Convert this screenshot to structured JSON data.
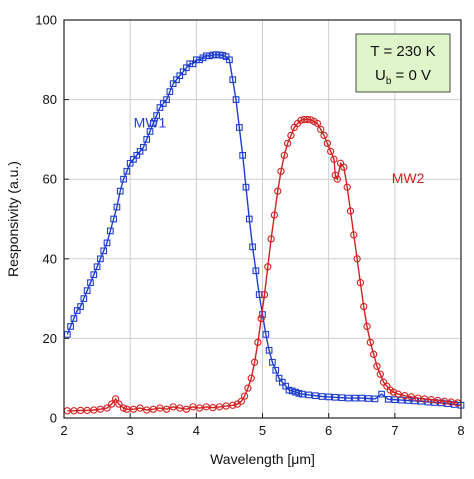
{
  "chart_data": {
    "type": "scatter",
    "xlabel": "Wavelength [μm]",
    "ylabel": "Responsivity (a.u.)",
    "xlim": [
      2,
      8
    ],
    "ylim": [
      0,
      100
    ],
    "x_ticks": [
      "2",
      "3",
      "4",
      "5",
      "6",
      "7",
      "8"
    ],
    "y_ticks": [
      "0",
      "20",
      "40",
      "60",
      "80",
      "100"
    ],
    "grid": true,
    "legend": "none",
    "annotation": {
      "line1": "T = 230 K",
      "line2_main": "U",
      "line2_sub": "b",
      "line2_rest": " = 0 V",
      "background": "#dff5c9"
    },
    "series": [
      {
        "name": "MW1",
        "color": "#1f3ecf",
        "marker": "square",
        "x": [
          2.05,
          2.1,
          2.15,
          2.2,
          2.25,
          2.3,
          2.35,
          2.4,
          2.45,
          2.5,
          2.55,
          2.6,
          2.65,
          2.7,
          2.75,
          2.8,
          2.85,
          2.9,
          2.95,
          3.0,
          3.05,
          3.1,
          3.15,
          3.2,
          3.25,
          3.3,
          3.35,
          3.4,
          3.45,
          3.5,
          3.55,
          3.6,
          3.65,
          3.7,
          3.75,
          3.8,
          3.85,
          3.9,
          3.95,
          4.0,
          4.05,
          4.1,
          4.15,
          4.2,
          4.25,
          4.3,
          4.35,
          4.4,
          4.45,
          4.5,
          4.55,
          4.6,
          4.65,
          4.7,
          4.75,
          4.8,
          4.85,
          4.9,
          4.95,
          5.0,
          5.05,
          5.1,
          5.15,
          5.2,
          5.25,
          5.3,
          5.35,
          5.4,
          5.45,
          5.5,
          5.55,
          5.6,
          5.7,
          5.8,
          5.9,
          6.0,
          6.1,
          6.2,
          6.3,
          6.4,
          6.5,
          6.6,
          6.7,
          6.8,
          6.9,
          7.0,
          7.1,
          7.2,
          7.3,
          7.4,
          7.5,
          7.6,
          7.7,
          7.8,
          7.9,
          8.0
        ],
        "y": [
          21,
          23,
          25,
          27,
          28,
          30,
          32,
          34,
          36,
          38,
          40,
          42,
          44,
          47,
          50,
          53,
          57,
          60,
          62,
          64,
          65,
          66,
          67,
          68,
          70,
          72,
          74,
          76,
          78,
          79,
          80,
          82,
          84,
          85,
          86,
          87,
          88,
          89,
          89,
          90,
          90,
          90.5,
          91,
          91,
          91.2,
          91.3,
          91.2,
          91.1,
          90.8,
          90,
          85,
          80,
          73,
          66,
          58,
          50,
          43,
          37,
          31,
          26,
          21,
          17,
          14,
          12,
          10,
          9,
          8,
          7,
          6.8,
          6.5,
          6.2,
          6,
          5.8,
          5.6,
          5.4,
          5.3,
          5.2,
          5.1,
          5,
          5,
          5,
          4.9,
          4.8,
          6,
          4.7,
          4.6,
          4.5,
          4.4,
          4.3,
          4.2,
          4,
          3.9,
          3.8,
          3.6,
          3.4,
          3.2
        ]
      },
      {
        "name": "MW2",
        "color": "#d42020",
        "marker": "circle",
        "x": [
          2.05,
          2.15,
          2.25,
          2.35,
          2.45,
          2.55,
          2.65,
          2.72,
          2.78,
          2.83,
          2.9,
          2.95,
          3.05,
          3.15,
          3.25,
          3.35,
          3.45,
          3.55,
          3.65,
          3.75,
          3.85,
          3.95,
          4.05,
          4.15,
          4.25,
          4.35,
          4.45,
          4.55,
          4.62,
          4.68,
          4.73,
          4.78,
          4.83,
          4.88,
          4.93,
          4.98,
          5.03,
          5.08,
          5.13,
          5.18,
          5.23,
          5.28,
          5.33,
          5.38,
          5.43,
          5.48,
          5.53,
          5.58,
          5.63,
          5.68,
          5.73,
          5.78,
          5.83,
          5.88,
          5.93,
          5.98,
          6.03,
          6.08,
          6.1,
          6.13,
          6.18,
          6.23,
          6.28,
          6.33,
          6.38,
          6.43,
          6.48,
          6.53,
          6.58,
          6.63,
          6.68,
          6.73,
          6.78,
          6.83,
          6.88,
          6.93,
          6.98,
          7.05,
          7.15,
          7.25,
          7.35,
          7.45,
          7.55,
          7.65,
          7.75,
          7.85,
          7.95
        ],
        "y": [
          1.8,
          1.8,
          1.9,
          1.9,
          2,
          2.2,
          2.5,
          3.5,
          4.8,
          3.5,
          2.5,
          2.2,
          2.2,
          2.5,
          2,
          2.2,
          2.5,
          2.2,
          2.8,
          2.5,
          2.2,
          2.8,
          2.5,
          2.8,
          2.6,
          2.8,
          3,
          3.2,
          3.5,
          4.2,
          5.5,
          7.5,
          10,
          14,
          19,
          25,
          31,
          38,
          45,
          51,
          57,
          62,
          66,
          69,
          71,
          73,
          74,
          74.8,
          75,
          75,
          74.9,
          74.5,
          74,
          72.5,
          71,
          69,
          67,
          65,
          61,
          60,
          64,
          63,
          58,
          52,
          46,
          40,
          34,
          28,
          23,
          19,
          16,
          13,
          11,
          9,
          8,
          7,
          6.5,
          6,
          5.6,
          5.3,
          5,
          4.8,
          4.6,
          4.4,
          4.2,
          4,
          3.8
        ]
      }
    ],
    "series_labels": [
      {
        "text": "MW1",
        "x": 3.3,
        "y": 73
      },
      {
        "text": "MW2",
        "x": 7.2,
        "y": 59
      }
    ]
  }
}
